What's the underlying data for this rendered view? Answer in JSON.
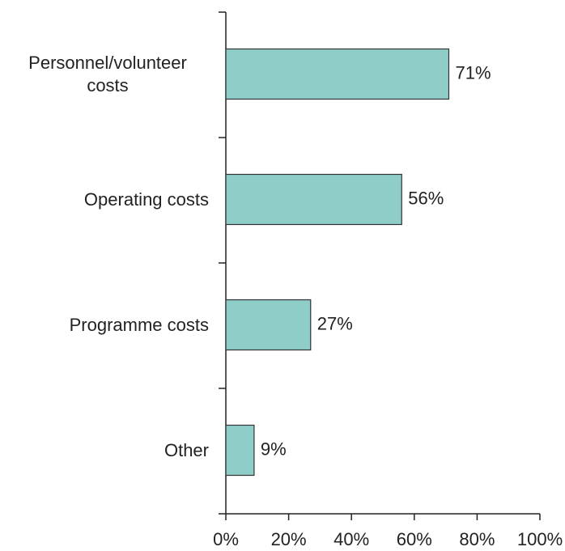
{
  "chart_data": {
    "type": "bar",
    "orientation": "horizontal",
    "categories": [
      "Personnel/volunteer costs",
      "Operating costs",
      "Programme costs",
      "Other"
    ],
    "values": [
      71,
      56,
      27,
      9
    ],
    "value_labels": [
      "71%",
      "56%",
      "27%",
      "9%"
    ],
    "color": "#8fcdc9",
    "xlim": [
      0,
      100
    ],
    "xticks": [
      {
        "value": 0,
        "label": "0%"
      },
      {
        "value": 20,
        "label": "20%"
      },
      {
        "value": 40,
        "label": "40%"
      },
      {
        "value": 60,
        "label": "60%"
      },
      {
        "value": 80,
        "label": "80%"
      },
      {
        "value": 100,
        "label": "100%"
      }
    ],
    "grid": false
  }
}
